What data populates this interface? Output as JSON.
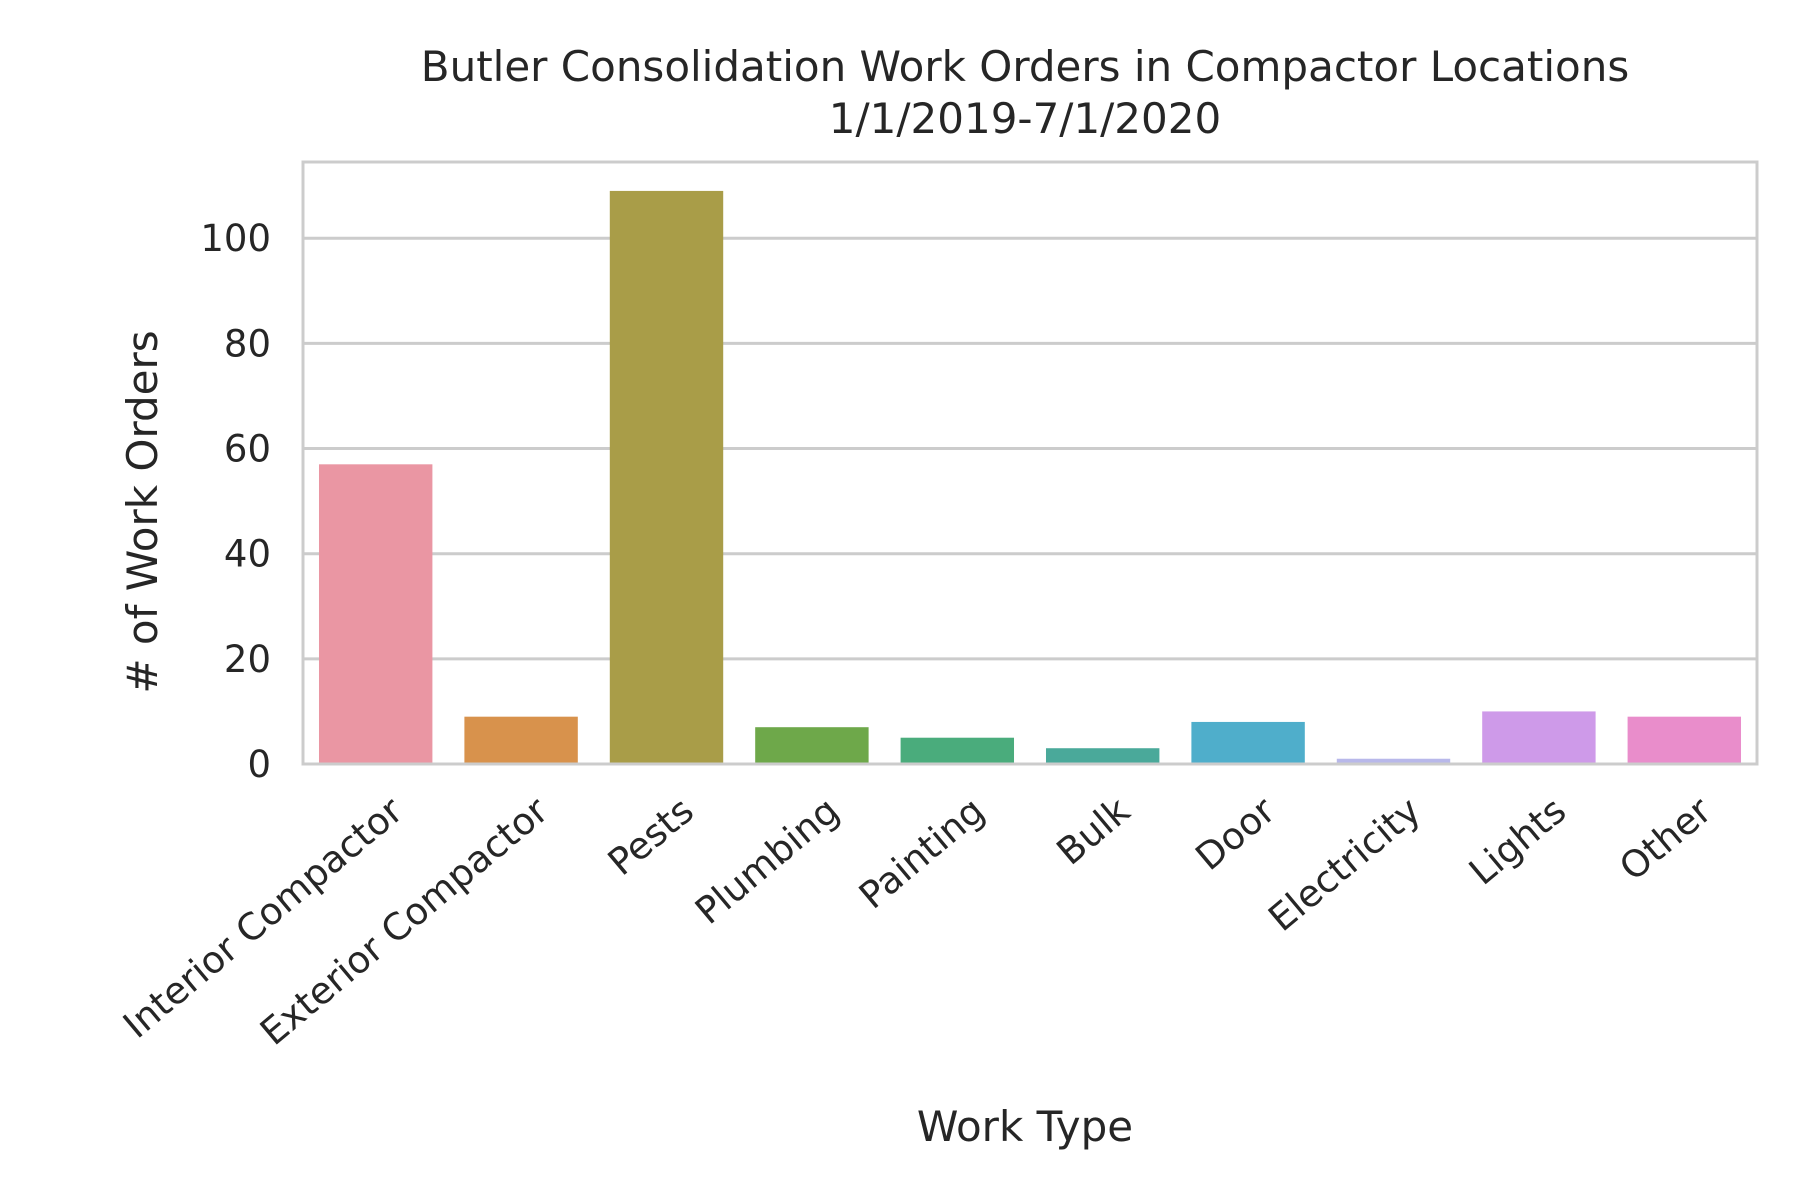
{
  "chart_data": {
    "type": "bar",
    "title": "Butler Consolidation Work Orders in Compactor Locations",
    "subtitle": "1/1/2019-7/1/2020",
    "xlabel": "Work Type",
    "ylabel": "# of Work Orders",
    "categories": [
      "Interior Compactor",
      "Exterior Compactor",
      "Pests",
      "Plumbing",
      "Painting",
      "Bulk",
      "Door",
      "Electricity",
      "Lights",
      "Other"
    ],
    "values": [
      57,
      9,
      109,
      7,
      5,
      3,
      8,
      1,
      10,
      9
    ],
    "colors": [
      "#ea96a3",
      "#d8924c",
      "#a99d48",
      "#6ea84a",
      "#4aac7c",
      "#4aa99a",
      "#4faecb",
      "#b8b8ea",
      "#ce9ae9",
      "#e98dcb"
    ],
    "yticks": [
      0,
      20,
      40,
      60,
      80,
      100
    ],
    "ylim": [
      0,
      114.5
    ],
    "grid": true,
    "legend": "none"
  }
}
